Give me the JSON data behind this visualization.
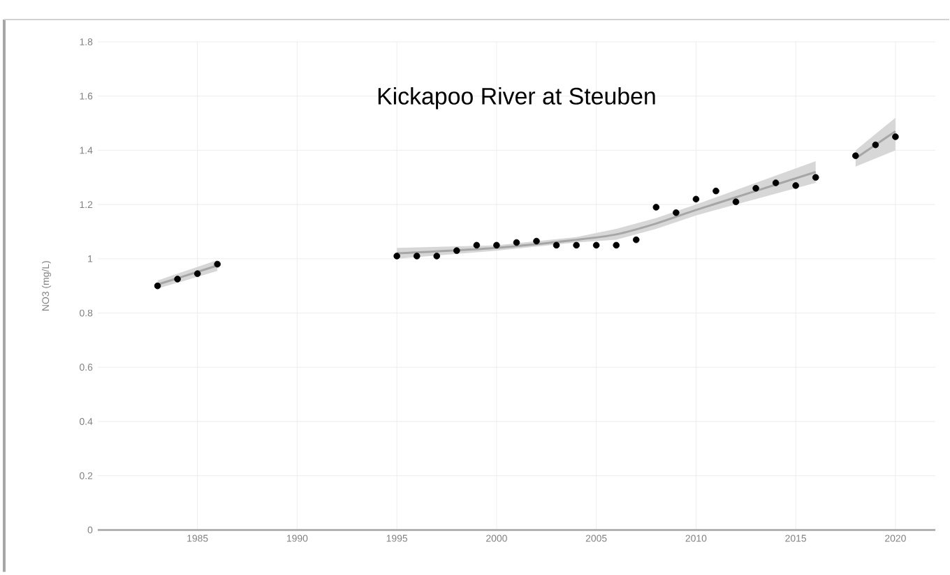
{
  "chart_data": {
    "type": "scatter",
    "title": "Kickapoo River at Steuben",
    "ylabel": "NO3 (mg/L)",
    "xlim": [
      1980,
      2022
    ],
    "xticks": [
      1985,
      1990,
      1995,
      2000,
      2005,
      2010,
      2015,
      2020
    ],
    "ylim": [
      0,
      1.8
    ],
    "yticks": [
      0,
      0.2,
      0.4,
      0.6,
      0.8,
      1,
      1.2,
      1.4,
      1.6,
      1.8
    ],
    "grid": true,
    "series": [
      {
        "type": "line",
        "marker": "none",
        "color": "#a6a6a6",
        "x": [
          1983,
          1986
        ],
        "values": [
          0.905,
          0.975
        ],
        "lower": [
          0.89,
          0.955
        ],
        "upper": [
          0.92,
          0.995
        ]
      },
      {
        "type": "line",
        "marker": "none",
        "color": "#a6a6a6",
        "x": [
          1995,
          2000,
          2004,
          2006,
          2008,
          2010,
          2013,
          2016
        ],
        "values": [
          1.02,
          1.04,
          1.07,
          1.09,
          1.13,
          1.18,
          1.25,
          1.32
        ],
        "lower": [
          1.0,
          1.03,
          1.06,
          1.07,
          1.11,
          1.16,
          1.22,
          1.28
        ],
        "upper": [
          1.04,
          1.05,
          1.08,
          1.11,
          1.15,
          1.2,
          1.28,
          1.36
        ]
      },
      {
        "type": "line",
        "marker": "none",
        "color": "#a6a6a6",
        "x": [
          2018,
          2020
        ],
        "values": [
          1.37,
          1.47
        ],
        "lower": [
          1.34,
          1.4
        ],
        "upper": [
          1.4,
          1.52
        ]
      },
      {
        "marker": "circle",
        "color": "#000000",
        "x": [
          1983,
          1984,
          1985,
          1986,
          1995,
          1996,
          1997,
          1998,
          1999,
          2000,
          2001,
          2002,
          2003,
          2004,
          2005,
          2006,
          2007,
          2008,
          2009,
          2010,
          2011,
          2012,
          2013,
          2014,
          2015,
          2016,
          2018,
          2019,
          2020
        ],
        "values": [
          0.9,
          0.925,
          0.945,
          0.98,
          1.01,
          1.01,
          1.01,
          1.03,
          1.05,
          1.05,
          1.06,
          1.065,
          1.05,
          1.05,
          1.05,
          1.05,
          1.07,
          1.19,
          1.17,
          1.22,
          1.25,
          1.21,
          1.26,
          1.28,
          1.27,
          1.3,
          1.38,
          1.42,
          1.45
        ]
      }
    ]
  }
}
